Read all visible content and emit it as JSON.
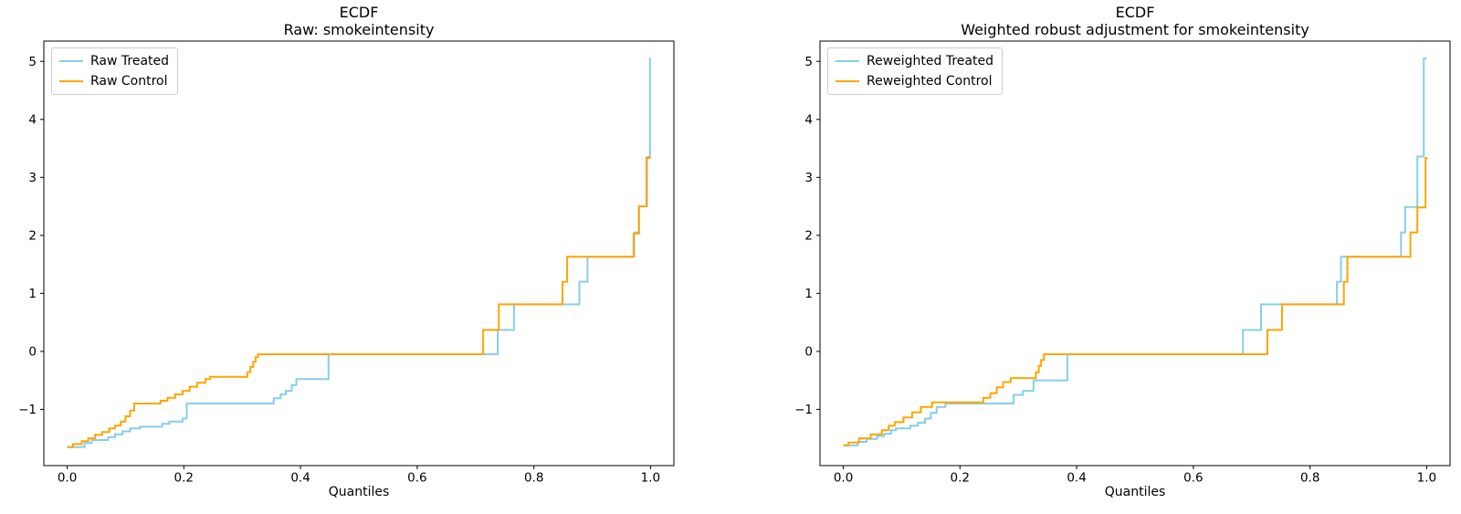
{
  "figure": {
    "background": "#ffffff"
  },
  "colors": {
    "treated": "#87CEEB",
    "control": "#FFA500",
    "axis": "#000000",
    "tick_text": "#000000",
    "legend_border": "#cccccc"
  },
  "chart_data": [
    {
      "type": "line",
      "panel": "left",
      "title_lines": [
        "ECDF",
        "Raw: smokeintensity"
      ],
      "xlabel": "Quantiles",
      "legend_position": "upper left",
      "grid": false,
      "step_style": "post",
      "xlim": [
        -0.04,
        1.04
      ],
      "ylim": [
        -1.97,
        5.35
      ],
      "x_ticks": [
        0.0,
        0.2,
        0.4,
        0.6,
        0.8,
        1.0
      ],
      "x_tick_labels": [
        "0.0",
        "0.2",
        "0.4",
        "0.6",
        "0.8",
        "1.0"
      ],
      "y_ticks": [
        -1,
        0,
        1,
        2,
        3,
        4,
        5
      ],
      "y_tick_labels": [
        "−1",
        "0",
        "1",
        "2",
        "3",
        "4",
        "5"
      ],
      "series": [
        {
          "name": "Raw Treated",
          "color": "#87CEEB",
          "points": [
            [
              0.0,
              -1.65
            ],
            [
              0.03,
              -1.58
            ],
            [
              0.042,
              -1.53
            ],
            [
              0.07,
              -1.48
            ],
            [
              0.082,
              -1.43
            ],
            [
              0.095,
              -1.38
            ],
            [
              0.108,
              -1.33
            ],
            [
              0.125,
              -1.3
            ],
            [
              0.163,
              -1.25
            ],
            [
              0.175,
              -1.21
            ],
            [
              0.198,
              -1.16
            ],
            [
              0.205,
              -0.9
            ],
            [
              0.354,
              -0.81
            ],
            [
              0.366,
              -0.74
            ],
            [
              0.375,
              -0.68
            ],
            [
              0.385,
              -0.58
            ],
            [
              0.393,
              -0.48
            ],
            [
              0.448,
              -0.05
            ],
            [
              0.738,
              0.37
            ],
            [
              0.766,
              0.81
            ],
            [
              0.878,
              1.2
            ],
            [
              0.892,
              1.63
            ],
            [
              0.972,
              2.05
            ],
            [
              0.98,
              2.5
            ],
            [
              0.994,
              3.35
            ],
            [
              0.999,
              5.05
            ],
            [
              1.0,
              5.05
            ]
          ]
        },
        {
          "name": "Raw Control",
          "color": "#FFA500",
          "points": [
            [
              0.0,
              -1.65
            ],
            [
              0.01,
              -1.6
            ],
            [
              0.025,
              -1.55
            ],
            [
              0.036,
              -1.5
            ],
            [
              0.048,
              -1.44
            ],
            [
              0.06,
              -1.39
            ],
            [
              0.072,
              -1.33
            ],
            [
              0.082,
              -1.28
            ],
            [
              0.092,
              -1.21
            ],
            [
              0.1,
              -1.12
            ],
            [
              0.108,
              -1.02
            ],
            [
              0.115,
              -0.9
            ],
            [
              0.16,
              -0.85
            ],
            [
              0.172,
              -0.8
            ],
            [
              0.185,
              -0.74
            ],
            [
              0.198,
              -0.68
            ],
            [
              0.21,
              -0.61
            ],
            [
              0.223,
              -0.54
            ],
            [
              0.237,
              -0.48
            ],
            [
              0.245,
              -0.44
            ],
            [
              0.309,
              -0.36
            ],
            [
              0.314,
              -0.27
            ],
            [
              0.319,
              -0.18
            ],
            [
              0.323,
              -0.1
            ],
            [
              0.327,
              -0.05
            ],
            [
              0.713,
              0.37
            ],
            [
              0.74,
              0.81
            ],
            [
              0.849,
              1.2
            ],
            [
              0.857,
              1.63
            ],
            [
              0.971,
              2.03
            ],
            [
              0.98,
              2.5
            ],
            [
              0.993,
              3.33
            ],
            [
              0.998,
              3.35
            ],
            [
              1.0,
              3.35
            ]
          ]
        }
      ]
    },
    {
      "type": "line",
      "panel": "right",
      "title_lines": [
        "ECDF",
        "Weighted robust adjustment for smokeintensity"
      ],
      "xlabel": "Quantiles",
      "legend_position": "upper left",
      "grid": false,
      "step_style": "post",
      "xlim": [
        -0.04,
        1.04
      ],
      "ylim": [
        -1.97,
        5.35
      ],
      "x_ticks": [
        0.0,
        0.2,
        0.4,
        0.6,
        0.8,
        1.0
      ],
      "x_tick_labels": [
        "0.0",
        "0.2",
        "0.4",
        "0.6",
        "0.8",
        "1.0"
      ],
      "y_ticks": [
        -1,
        0,
        1,
        2,
        3,
        4,
        5
      ],
      "y_tick_labels": [
        "−1",
        "0",
        "1",
        "2",
        "3",
        "4",
        "5"
      ],
      "series": [
        {
          "name": "Reweighted Treated",
          "color": "#87CEEB",
          "points": [
            [
              0.0,
              -1.62
            ],
            [
              0.025,
              -1.56
            ],
            [
              0.04,
              -1.51
            ],
            [
              0.058,
              -1.46
            ],
            [
              0.07,
              -1.42
            ],
            [
              0.082,
              -1.36
            ],
            [
              0.09,
              -1.33
            ],
            [
              0.115,
              -1.28
            ],
            [
              0.128,
              -1.23
            ],
            [
              0.14,
              -1.16
            ],
            [
              0.15,
              -1.06
            ],
            [
              0.16,
              -0.96
            ],
            [
              0.175,
              -0.9
            ],
            [
              0.292,
              -0.75
            ],
            [
              0.308,
              -0.68
            ],
            [
              0.326,
              -0.5
            ],
            [
              0.384,
              -0.05
            ],
            [
              0.685,
              0.37
            ],
            [
              0.716,
              0.81
            ],
            [
              0.846,
              1.2
            ],
            [
              0.853,
              1.63
            ],
            [
              0.956,
              2.05
            ],
            [
              0.963,
              2.49
            ],
            [
              0.984,
              3.36
            ],
            [
              0.995,
              5.05
            ],
            [
              1.0,
              5.05
            ]
          ]
        },
        {
          "name": "Reweighted Control",
          "color": "#FFA500",
          "points": [
            [
              0.0,
              -1.62
            ],
            [
              0.009,
              -1.57
            ],
            [
              0.027,
              -1.5
            ],
            [
              0.047,
              -1.43
            ],
            [
              0.066,
              -1.36
            ],
            [
              0.078,
              -1.28
            ],
            [
              0.088,
              -1.22
            ],
            [
              0.103,
              -1.14
            ],
            [
              0.118,
              -1.05
            ],
            [
              0.133,
              -0.96
            ],
            [
              0.152,
              -0.88
            ],
            [
              0.24,
              -0.8
            ],
            [
              0.252,
              -0.72
            ],
            [
              0.263,
              -0.62
            ],
            [
              0.274,
              -0.53
            ],
            [
              0.287,
              -0.46
            ],
            [
              0.33,
              -0.36
            ],
            [
              0.335,
              -0.25
            ],
            [
              0.339,
              -0.15
            ],
            [
              0.344,
              -0.05
            ],
            [
              0.727,
              0.37
            ],
            [
              0.752,
              0.81
            ],
            [
              0.858,
              1.2
            ],
            [
              0.864,
              1.63
            ],
            [
              0.972,
              2.05
            ],
            [
              0.984,
              2.48
            ],
            [
              0.998,
              3.33
            ],
            [
              1.0,
              3.35
            ]
          ]
        }
      ]
    }
  ]
}
